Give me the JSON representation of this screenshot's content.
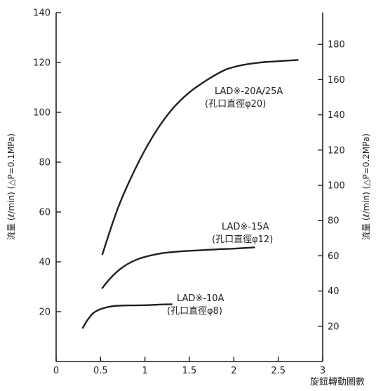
{
  "chart_data": {
    "type": "line",
    "title": "",
    "xlabel": "旋鈕轉動圈數",
    "ylabel_left": "流量 (ℓ/min) (△P=0.1MPa)",
    "ylabel_right": "流量 (ℓ/min) (△P=0.2MPa)",
    "xlim": [
      0,
      3
    ],
    "ylim_left": [
      0,
      140
    ],
    "ylim_right": [
      0,
      198
    ],
    "x_ticks": [
      "0",
      "0.5",
      "1",
      "1.5",
      "2",
      "2.5",
      "3"
    ],
    "y_ticks_left": [
      "20",
      "40",
      "60",
      "80",
      "100",
      "120",
      "140"
    ],
    "y_ticks_right": [
      "20",
      "40",
      "60",
      "80",
      "100",
      "120",
      "140",
      "160",
      "180"
    ],
    "grid": false,
    "line_color": "#231f20",
    "series": [
      {
        "name": "LAD※-20A/25A",
        "name_sub": "(孔口直徑φ20)",
        "x": [
          0.52,
          0.7,
          0.9,
          1.1,
          1.3,
          1.5,
          1.7,
          1.9,
          2.1,
          2.3,
          2.5,
          2.72
        ],
        "y": [
          43,
          62,
          78,
          91,
          101,
          108,
          113,
          117,
          119,
          120,
          120.5,
          121
        ]
      },
      {
        "name": "LAD※-15A",
        "name_sub": "(孔口直徑φ12)",
        "x": [
          0.52,
          0.6,
          0.7,
          0.8,
          0.9,
          1.0,
          1.2,
          1.4,
          1.6,
          1.8,
          2.0,
          2.23
        ],
        "y": [
          29.5,
          33,
          36.5,
          39,
          40.8,
          42,
          43.5,
          44.2,
          44.6,
          45,
          45.3,
          45.8
        ]
      },
      {
        "name": "LAD※-10A",
        "name_sub": "(孔口直徑φ8)",
        "x": [
          0.3,
          0.35,
          0.42,
          0.5,
          0.6,
          0.7,
          0.8,
          1.0,
          1.2,
          1.3
        ],
        "y": [
          13.5,
          16.5,
          19.5,
          21,
          22,
          22.4,
          22.5,
          22.6,
          22.9,
          23
        ]
      }
    ]
  }
}
